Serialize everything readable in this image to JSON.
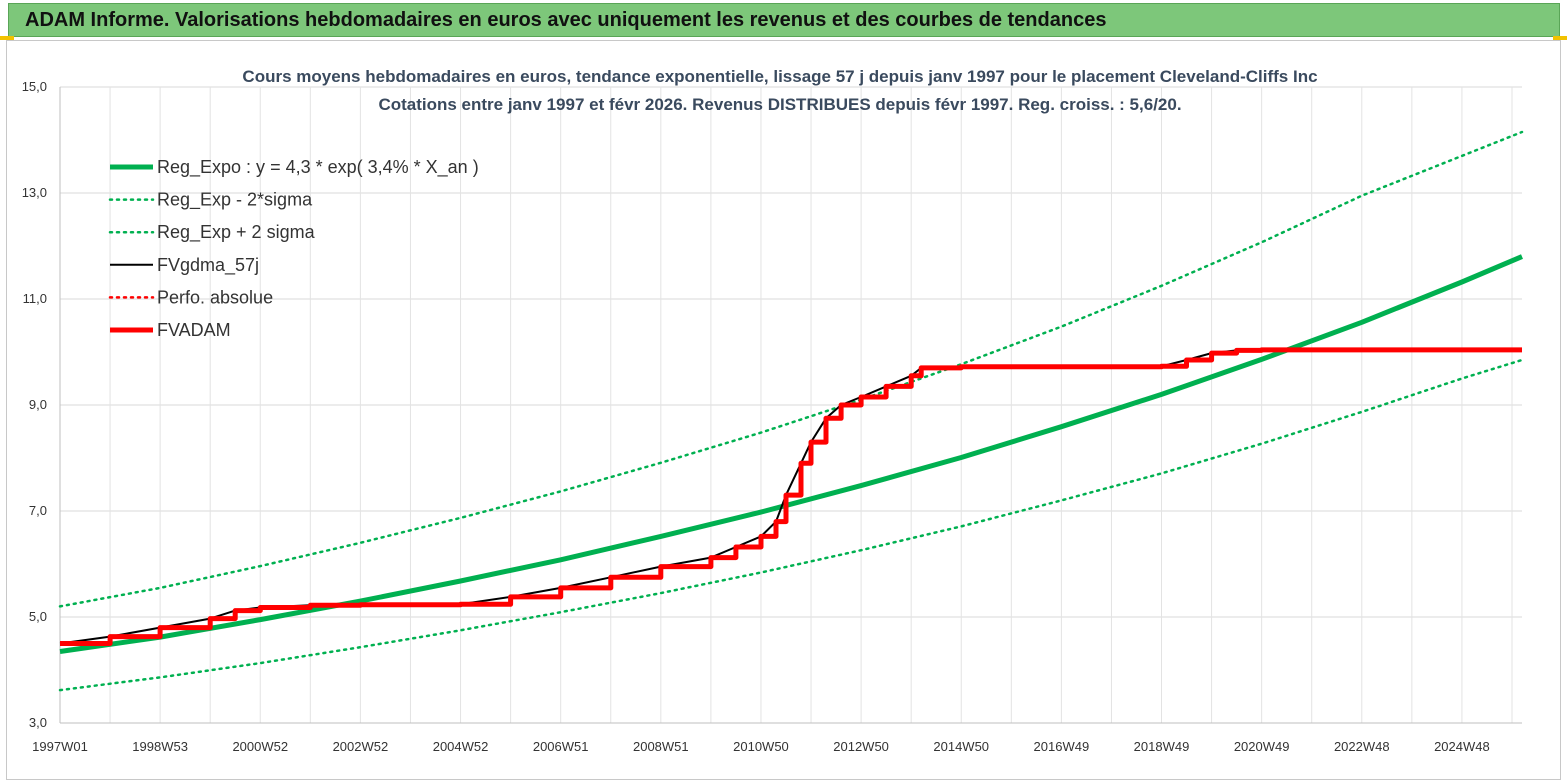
{
  "banner": {
    "title": "ADAM Informe. Valorisations hebdomadaires en euros avec uniquement les revenus et des courbes de tendances"
  },
  "colors": {
    "banner_bg": "#7dc77a",
    "trend_green": "#00b050",
    "fv_black": "#000000",
    "adam_red": "#ff0000",
    "title_text": "#3a4a5e"
  },
  "chart_data": {
    "type": "line",
    "title": "Cours moyens hebdomadaires en euros, tendance exponentielle, lissage 57 j depuis janv 1997 pour le placement Cleveland-Cliffs Inc",
    "subtitle": "Cotations entre janv 1997 et févr 2026. Revenus DISTRIBUES depuis févr 1997. Reg. croiss. : 5,6/20.",
    "xlabel": "",
    "ylabel": "",
    "x_range": [
      1997.0,
      2026.2
    ],
    "ylim": [
      3.0,
      15.0
    ],
    "y_ticks": [
      "3,0",
      "5,0",
      "7,0",
      "9,0",
      "11,0",
      "13,0",
      "15,0"
    ],
    "y_tick_values": [
      3,
      5,
      7,
      9,
      11,
      13,
      15
    ],
    "x_tick_labels": [
      "1997W01",
      "1998W53",
      "2000W52",
      "2002W52",
      "2004W52",
      "2006W51",
      "2008W51",
      "2010W50",
      "2012W50",
      "2014W50",
      "2016W49",
      "2018W49",
      "2020W49",
      "2022W48",
      "2024W48"
    ],
    "x_tick_values": [
      1997.0,
      1999.0,
      2001.0,
      2003.0,
      2005.0,
      2007.0,
      2009.0,
      2011.0,
      2013.0,
      2015.0,
      2017.0,
      2019.0,
      2021.0,
      2023.0,
      2025.0
    ],
    "grid": true,
    "legend_position": "top-left",
    "series": [
      {
        "name": "Reg_Expo : y = 4,3 * exp( 3,4% *  X_an )",
        "style": "solid-thick",
        "color": "#00b050",
        "x": [
          1997,
          1999,
          2001,
          2003,
          2005,
          2007,
          2009,
          2011,
          2013,
          2015,
          2017,
          2019,
          2021,
          2023,
          2025,
          2026.2
        ],
        "values": [
          4.35,
          4.62,
          4.95,
          5.3,
          5.68,
          6.08,
          6.52,
          6.98,
          7.48,
          8.01,
          8.59,
          9.2,
          9.86,
          10.56,
          11.32,
          11.8
        ]
      },
      {
        "name": "Reg_Exp - 2*sigma",
        "style": "dotted",
        "color": "#00b050",
        "x": [
          1997,
          1999,
          2001,
          2003,
          2005,
          2007,
          2009,
          2011,
          2013,
          2015,
          2017,
          2019,
          2021,
          2023,
          2025,
          2026.2
        ],
        "values": [
          3.62,
          3.86,
          4.13,
          4.43,
          4.75,
          5.09,
          5.45,
          5.84,
          6.26,
          6.71,
          7.2,
          7.71,
          8.27,
          8.87,
          9.5,
          9.85
        ]
      },
      {
        "name": "Reg_Exp + 2 sigma",
        "style": "dotted",
        "color": "#00b050",
        "x": [
          1997,
          1999,
          2001,
          2003,
          2005,
          2007,
          2009,
          2011,
          2013,
          2015,
          2017,
          2019,
          2021,
          2023,
          2025,
          2026.2
        ],
        "values": [
          5.2,
          5.55,
          5.96,
          6.4,
          6.87,
          7.37,
          7.91,
          8.48,
          9.1,
          9.77,
          10.48,
          11.25,
          12.07,
          12.95,
          13.7,
          14.15
        ]
      },
      {
        "name": "FVgdma_57j",
        "style": "solid",
        "color": "#000000",
        "x": [
          1997,
          1998,
          1999,
          2000,
          2000.5,
          2001,
          2002,
          2003,
          2004,
          2005,
          2006,
          2007,
          2008,
          2009,
          2010,
          2010.5,
          2011,
          2011.3,
          2011.5,
          2011.8,
          2012,
          2012.3,
          2012.6,
          2013,
          2013.5,
          2014,
          2014.2,
          2015,
          2016,
          2017,
          2018,
          2019,
          2019.5,
          2020,
          2020.5,
          2021,
          2022,
          2023,
          2024,
          2025,
          2026.2
        ],
        "values": [
          4.5,
          4.63,
          4.8,
          4.97,
          5.12,
          5.18,
          5.22,
          5.23,
          5.23,
          5.24,
          5.38,
          5.55,
          5.75,
          5.95,
          6.12,
          6.32,
          6.52,
          6.8,
          7.3,
          7.9,
          8.3,
          8.75,
          9.0,
          9.15,
          9.35,
          9.55,
          9.7,
          9.72,
          9.72,
          9.72,
          9.72,
          9.73,
          9.85,
          9.98,
          10.03,
          10.04,
          10.04,
          10.04,
          10.04,
          10.04,
          10.04
        ]
      },
      {
        "name": "Perfo. absolue",
        "style": "dotted",
        "color": "#ff0000",
        "x": [],
        "values": []
      },
      {
        "name": "FVADAM",
        "style": "solid-thick",
        "color": "#ff0000",
        "x": [
          1997,
          1998,
          1999,
          2000,
          2000.5,
          2001,
          2002,
          2003,
          2004,
          2005,
          2006,
          2007,
          2008,
          2009,
          2010,
          2010.5,
          2011,
          2011.3,
          2011.5,
          2011.8,
          2012,
          2012.3,
          2012.6,
          2013,
          2013.5,
          2014,
          2014.2,
          2015,
          2016,
          2017,
          2018,
          2019,
          2019.5,
          2020,
          2020.5,
          2021,
          2022,
          2023,
          2024,
          2025,
          2026.2
        ],
        "values": [
          4.5,
          4.63,
          4.8,
          4.97,
          5.12,
          5.18,
          5.22,
          5.23,
          5.23,
          5.24,
          5.38,
          5.55,
          5.75,
          5.95,
          6.12,
          6.32,
          6.52,
          6.8,
          7.3,
          7.9,
          8.3,
          8.75,
          9.0,
          9.15,
          9.35,
          9.55,
          9.7,
          9.72,
          9.72,
          9.72,
          9.72,
          9.73,
          9.85,
          9.98,
          10.03,
          10.04,
          10.04,
          10.04,
          10.04,
          10.04,
          10.04
        ]
      }
    ]
  }
}
